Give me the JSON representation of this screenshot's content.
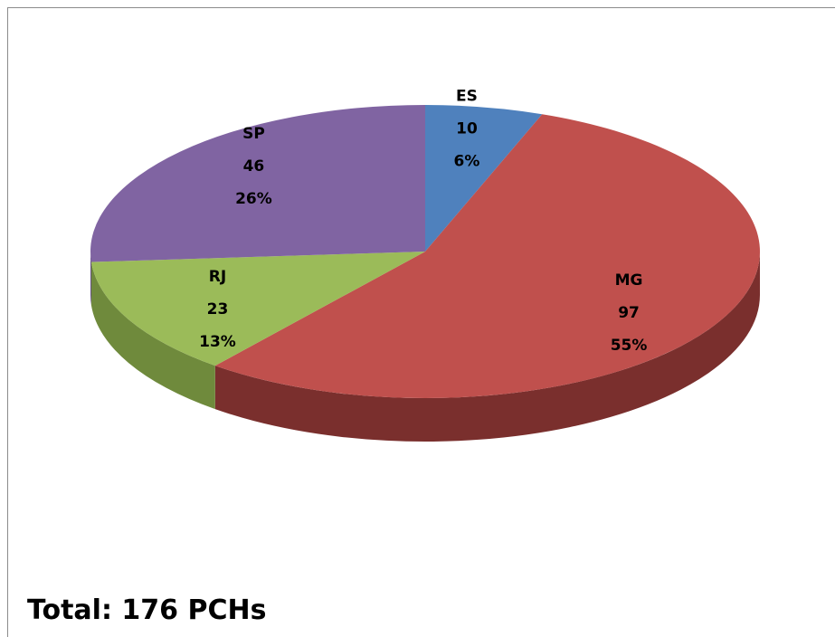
{
  "chart_data": {
    "type": "pie3d",
    "categories": [
      "ES",
      "MG",
      "RJ",
      "SP"
    ],
    "values": [
      10,
      97,
      23,
      46
    ],
    "percent_labels": [
      "6%",
      "55%",
      "13%",
      "26%"
    ],
    "colors": [
      "#4f81bd",
      "#c0504d",
      "#9bbb59",
      "#8064a2"
    ],
    "side_colors": [
      "#3a6290",
      "#7a2f2d",
      "#6f8a3c",
      "#5c4678"
    ],
    "note": "Total: 176 PCHs"
  }
}
